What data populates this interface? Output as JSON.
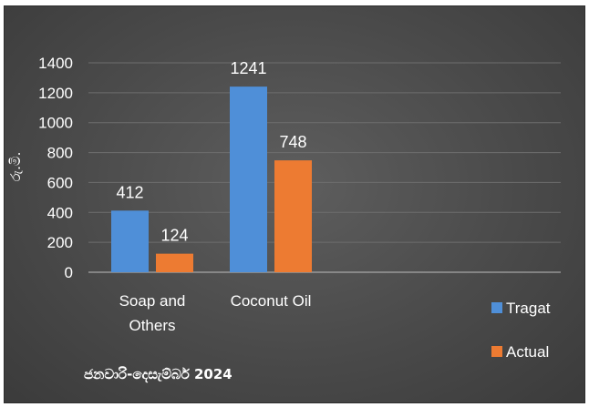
{
  "chart_data": {
    "type": "bar",
    "categories": [
      "Soap and Others",
      "Coconut Oil"
    ],
    "category_lines": [
      [
        "Soap and",
        "Others"
      ],
      [
        "Coconut Oil"
      ]
    ],
    "series": [
      {
        "name": "Tragat",
        "values": [
          412,
          1241
        ],
        "color": "#4f8fd8"
      },
      {
        "name": "Actual",
        "values": [
          124,
          748
        ],
        "color": "#ed7b32"
      }
    ],
    "ylabel": "රු.මි.",
    "ylim": [
      0,
      1400
    ],
    "yticks": [
      0,
      200,
      400,
      600,
      800,
      1000,
      1200,
      1400
    ],
    "grid": true,
    "legend_position": "bottom-right",
    "annotation": "ජනවාරි-දෙසැම්බර් 2024"
  }
}
